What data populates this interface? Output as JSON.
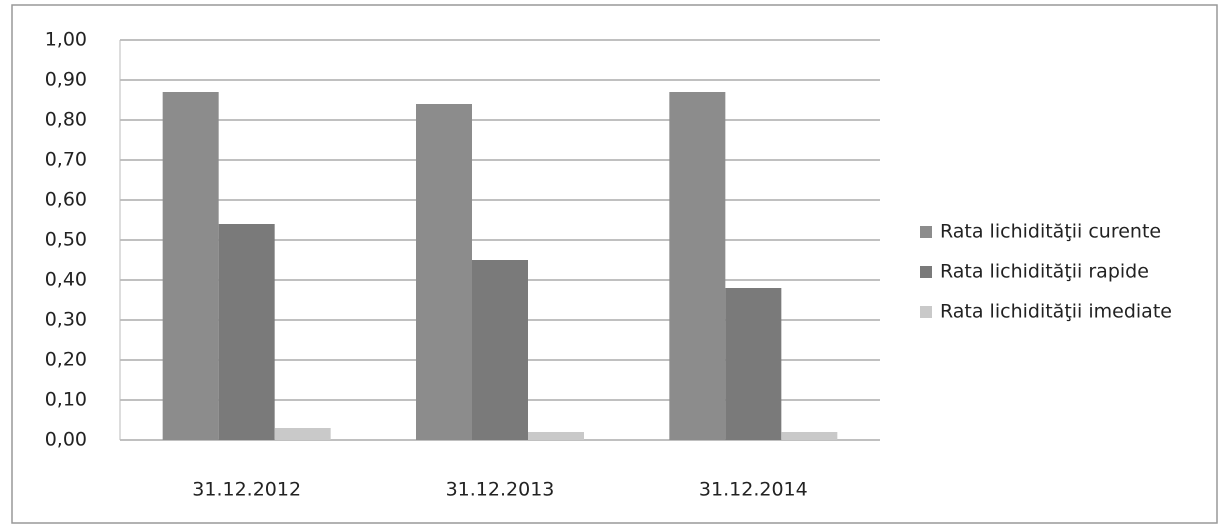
{
  "chart_data": {
    "type": "bar",
    "categories": [
      "31.12.2012",
      "31.12.2013",
      "31.12.2014"
    ],
    "series": [
      {
        "name": "Rata lichidităţii curente",
        "color": "#8c8c8c",
        "values": [
          0.87,
          0.84,
          0.87
        ]
      },
      {
        "name": "Rata lichidităţii rapide",
        "color": "#7a7a7a",
        "values": [
          0.54,
          0.45,
          0.38
        ]
      },
      {
        "name": "Rata lichidităţii imediate",
        "color": "#c9c9c9",
        "values": [
          0.03,
          0.02,
          0.02
        ]
      }
    ],
    "ylim": [
      0,
      1
    ],
    "yticks": [
      {
        "value": 0,
        "label": "0,00"
      },
      {
        "value": 0.1,
        "label": "0,10"
      },
      {
        "value": 0.2,
        "label": "0,20"
      },
      {
        "value": 0.3,
        "label": "0,30"
      },
      {
        "value": 0.4,
        "label": "0,40"
      },
      {
        "value": 0.5,
        "label": "0,50"
      },
      {
        "value": 0.6,
        "label": "0,60"
      },
      {
        "value": 0.7,
        "label": "0,70"
      },
      {
        "value": 0.8,
        "label": "0,80"
      },
      {
        "value": 0.9,
        "label": "0,90"
      },
      {
        "value": 1,
        "label": "1,00"
      }
    ],
    "grid": true,
    "legend": "right"
  }
}
